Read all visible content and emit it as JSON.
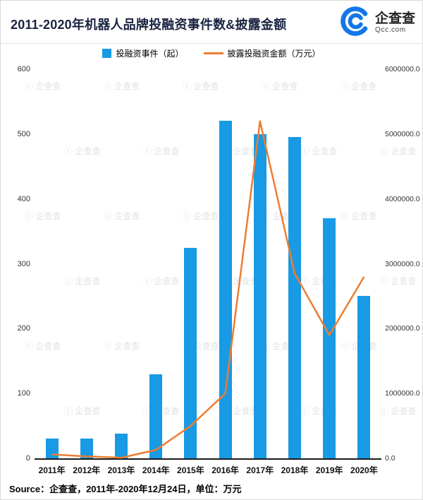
{
  "header": {
    "title": "2011-2020年机器人品牌投融资事件数&披露金额",
    "logo_name": "企查查",
    "logo_domain": "Qcc.com"
  },
  "legend": {
    "bar_label": "投融资事件（起）",
    "line_label": "披露投融资金额（万元）"
  },
  "watermark_text": "企查查",
  "chart_data": {
    "type": "bar+line",
    "title": "2011-2020年机器人品牌投融资事件数&披露金额",
    "categories": [
      "2011年",
      "2012年",
      "2013年",
      "2014年",
      "2015年",
      "2016年",
      "2017年",
      "2018年",
      "2019年",
      "2020年"
    ],
    "series": [
      {
        "name": "投融资事件（起）",
        "type": "bar",
        "axis": "left",
        "color": "#189AE4",
        "values": [
          30,
          30,
          38,
          130,
          325,
          520,
          500,
          495,
          370,
          250
        ]
      },
      {
        "name": "披露投融资金额（万元）",
        "type": "line",
        "axis": "right",
        "color": "#ED7D31",
        "values": [
          60000,
          30000,
          10000,
          130000,
          500000,
          1000000,
          5200000,
          2850000,
          1900000,
          2800000
        ]
      }
    ],
    "left_axis": {
      "min": 0,
      "max": 600,
      "ticks": [
        600,
        500,
        400,
        300,
        200,
        100,
        0
      ]
    },
    "right_axis": {
      "min": 0,
      "max": 6000000,
      "tick_labels": [
        "6000000.0",
        "5000000.0",
        "4000000.0",
        "3000000.0",
        "2000000.0",
        "1000000.0",
        "0.0"
      ]
    },
    "grid": false,
    "legend_position": "top"
  },
  "footer": {
    "source_label": "Source：",
    "source_text": "企查查，2011年-2020年12月24日，单位：万元"
  }
}
